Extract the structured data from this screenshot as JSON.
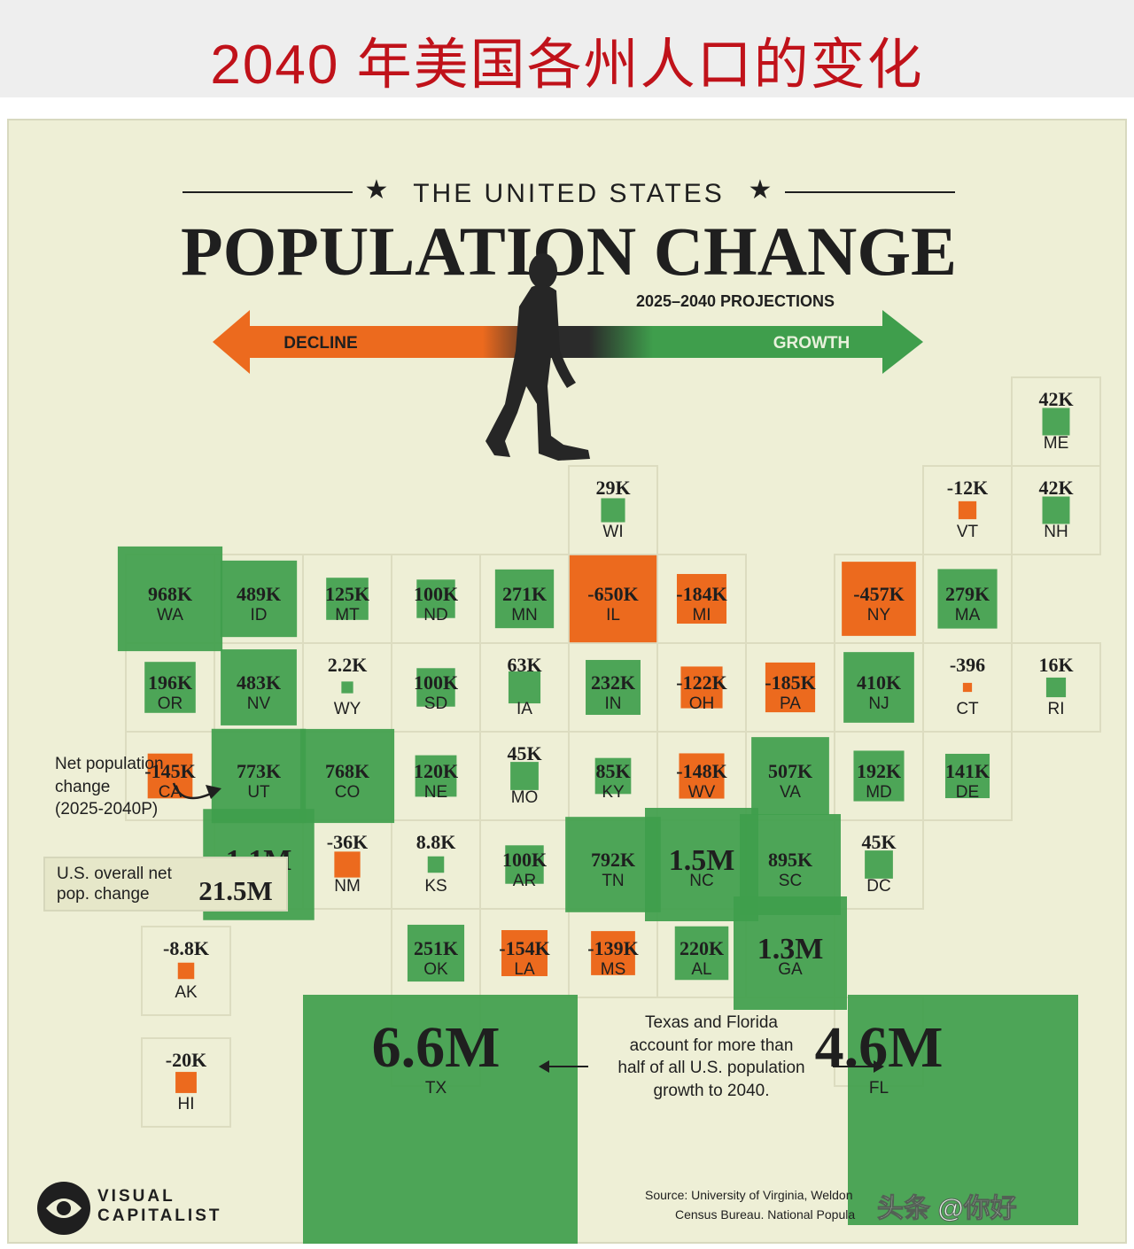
{
  "banner_title": "2040 年美国各州人口的变化",
  "header": {
    "kicker": "THE UNITED STATES",
    "title": "POPULATION CHANGE",
    "subtitle": "2025–2040 PROJECTIONS",
    "decline_label": "DECLINE",
    "growth_label": "GROWTH"
  },
  "annotations": {
    "net_change_note": [
      "Net population",
      "change",
      "(2025-2040P)"
    ],
    "overall_label": [
      "U.S. overall net",
      "pop. change"
    ],
    "overall_value": "21.5M",
    "tx_fl_note": [
      "Texas and Florida",
      "account for more than",
      "half of all U.S. population",
      "growth to 2040."
    ]
  },
  "brand": {
    "line1": "VISUAL",
    "line2": "CAPITALIST"
  },
  "source": [
    "Source: University of Virginia, Weldon",
    "Census Bureau. National Popula"
  ],
  "watermark": "头条 @你好",
  "colors": {
    "growth": "#3f9e4c",
    "decline": "#ec6a1e",
    "cell_border": "#dcdcc0",
    "background": "#eeefd6",
    "banner_red": "#c0121a"
  },
  "chart_data": {
    "type": "tile-grid map",
    "title": "POPULATION CHANGE",
    "unit": "net population change, 2025-2040 (projected)",
    "series": [
      {
        "state": "ME",
        "label": "42K",
        "value": 42000
      },
      {
        "state": "WI",
        "label": "29K",
        "value": 29000
      },
      {
        "state": "VT",
        "label": "-12K",
        "value": -12000
      },
      {
        "state": "NH",
        "label": "42K",
        "value": 42000
      },
      {
        "state": "WA",
        "label": "968K",
        "value": 968000
      },
      {
        "state": "ID",
        "label": "489K",
        "value": 489000
      },
      {
        "state": "MT",
        "label": "125K",
        "value": 125000
      },
      {
        "state": "ND",
        "label": "100K",
        "value": 100000
      },
      {
        "state": "MN",
        "label": "271K",
        "value": 271000
      },
      {
        "state": "IL",
        "label": "-650K",
        "value": -650000
      },
      {
        "state": "MI",
        "label": "-184K",
        "value": -184000
      },
      {
        "state": "NY",
        "label": "-457K",
        "value": -457000
      },
      {
        "state": "MA",
        "label": "279K",
        "value": 279000
      },
      {
        "state": "OR",
        "label": "196K",
        "value": 196000
      },
      {
        "state": "NV",
        "label": "483K",
        "value": 483000
      },
      {
        "state": "WY",
        "label": "2.2K",
        "value": 2200
      },
      {
        "state": "SD",
        "label": "100K",
        "value": 100000
      },
      {
        "state": "IA",
        "label": "63K",
        "value": 63000
      },
      {
        "state": "IN",
        "label": "232K",
        "value": 232000
      },
      {
        "state": "OH",
        "label": "-122K",
        "value": -122000
      },
      {
        "state": "PA",
        "label": "-185K",
        "value": -185000
      },
      {
        "state": "NJ",
        "label": "410K",
        "value": 410000
      },
      {
        "state": "CT",
        "label": "-396",
        "value": -396
      },
      {
        "state": "RI",
        "label": "16K",
        "value": 16000
      },
      {
        "state": "CA",
        "label": "-145K",
        "value": -145000
      },
      {
        "state": "UT",
        "label": "773K",
        "value": 773000
      },
      {
        "state": "CO",
        "label": "768K",
        "value": 768000
      },
      {
        "state": "NE",
        "label": "120K",
        "value": 120000
      },
      {
        "state": "MO",
        "label": "45K",
        "value": 45000
      },
      {
        "state": "KY",
        "label": "85K",
        "value": 85000
      },
      {
        "state": "WV",
        "label": "-148K",
        "value": -148000
      },
      {
        "state": "VA",
        "label": "507K",
        "value": 507000
      },
      {
        "state": "MD",
        "label": "192K",
        "value": 192000
      },
      {
        "state": "DE",
        "label": "141K",
        "value": 141000
      },
      {
        "state": "AZ",
        "label": "1.1M",
        "value": 1100000
      },
      {
        "state": "NM",
        "label": "-36K",
        "value": -36000
      },
      {
        "state": "KS",
        "label": "8.8K",
        "value": 8800
      },
      {
        "state": "AR",
        "label": "100K",
        "value": 100000
      },
      {
        "state": "TN",
        "label": "792K",
        "value": 792000
      },
      {
        "state": "NC",
        "label": "1.5M",
        "value": 1500000
      },
      {
        "state": "SC",
        "label": "895K",
        "value": 895000
      },
      {
        "state": "DC",
        "label": "45K",
        "value": 45000
      },
      {
        "state": "OK",
        "label": "251K",
        "value": 251000
      },
      {
        "state": "LA",
        "label": "-154K",
        "value": -154000
      },
      {
        "state": "MS",
        "label": "-139K",
        "value": -139000
      },
      {
        "state": "AL",
        "label": "220K",
        "value": 220000
      },
      {
        "state": "GA",
        "label": "1.3M",
        "value": 1300000
      },
      {
        "state": "TX",
        "label": "6.6M",
        "value": 6600000
      },
      {
        "state": "FL",
        "label": "4.6M",
        "value": 4600000
      },
      {
        "state": "AK",
        "label": "-8.8K",
        "value": -8800
      },
      {
        "state": "HI",
        "label": "-20K",
        "value": -20000
      }
    ]
  }
}
